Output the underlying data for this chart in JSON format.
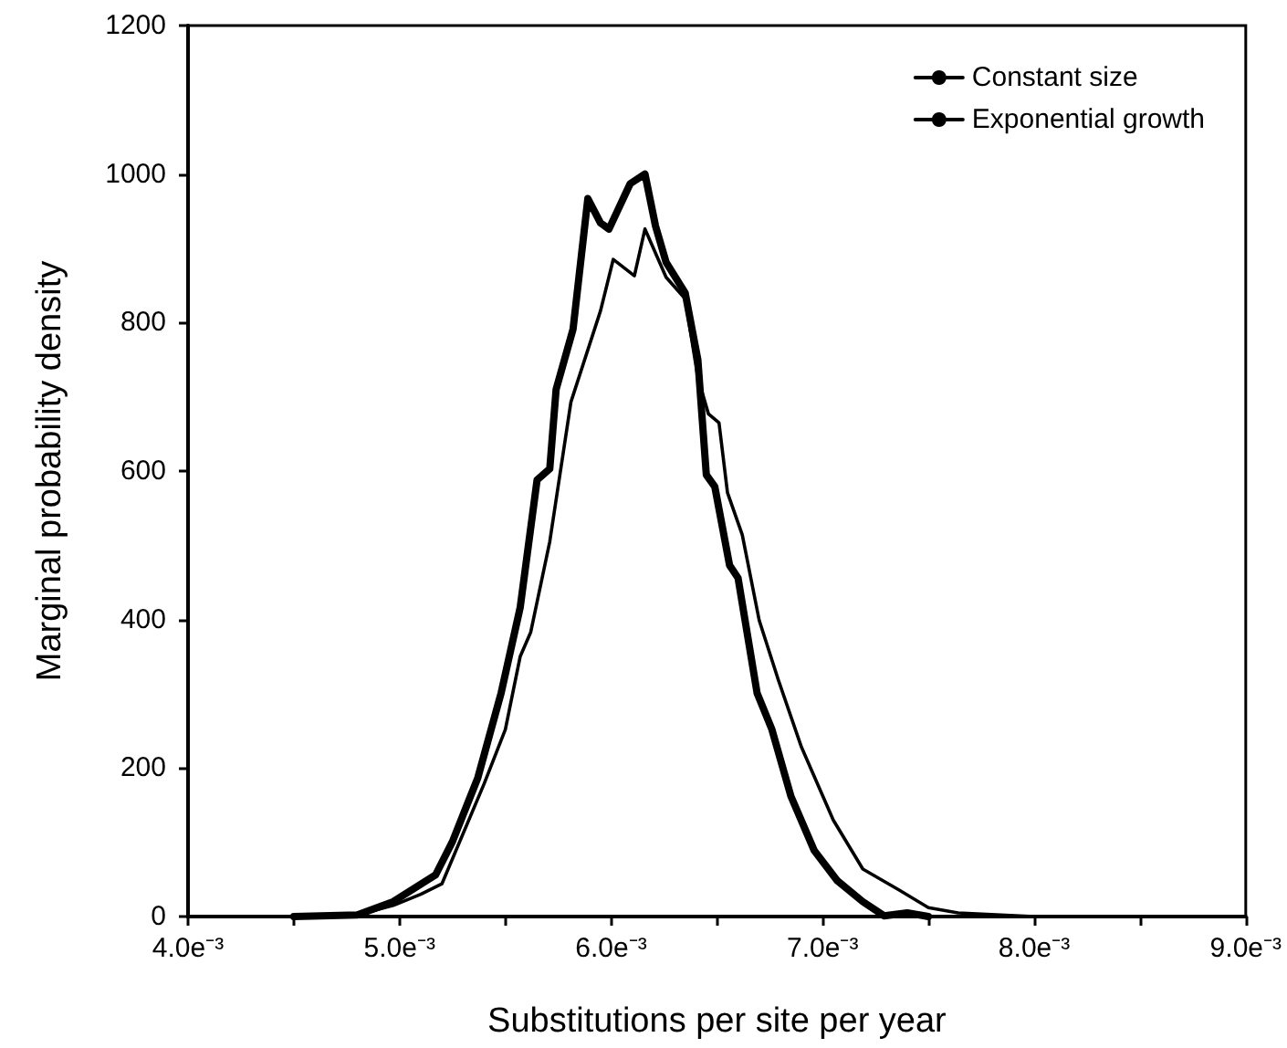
{
  "chart_data": {
    "type": "line",
    "xlabel": "Substitutions per site per year",
    "ylabel": "Marginal probability density",
    "xlim": [
      4.0,
      9.0
    ],
    "xticks": [
      {
        "value": 4.0,
        "label": "4.0e⁻³"
      },
      {
        "value": 4.5,
        "label": null
      },
      {
        "value": 5.0,
        "label": "5.0e⁻³"
      },
      {
        "value": 5.5,
        "label": null
      },
      {
        "value": 6.0,
        "label": "6.0e⁻³"
      },
      {
        "value": 6.5,
        "label": null
      },
      {
        "value": 7.0,
        "label": "7.0e⁻³"
      },
      {
        "value": 7.5,
        "label": null
      },
      {
        "value": 8.0,
        "label": "8.0e⁻³"
      },
      {
        "value": 8.5,
        "label": null
      },
      {
        "value": 9.0,
        "label": "9.0e⁻³"
      }
    ],
    "ylim": [
      0,
      1200
    ],
    "yticks": [
      0,
      200,
      400,
      600,
      800,
      1000,
      1200
    ],
    "grid": false,
    "legend": "top right",
    "marker": "none",
    "line_style": "solid",
    "series": [
      {
        "name": "Constant size",
        "color": "#000000",
        "x": [
          4.6,
          4.8,
          4.97,
          5.1,
          5.2,
          5.4,
          5.5,
          5.57,
          5.62,
          5.71,
          5.81,
          5.95,
          6.01,
          6.11,
          6.16,
          6.26,
          6.35,
          6.41,
          6.46,
          6.51,
          6.55,
          6.62,
          6.7,
          6.79,
          6.9,
          7.05,
          7.19,
          7.36,
          7.5,
          7.64,
          8.0
        ],
        "values": [
          0,
          2,
          15,
          30,
          44,
          179,
          252,
          350,
          383,
          505,
          693,
          816,
          885,
          863,
          926,
          861,
          832,
          726,
          677,
          665,
          571,
          514,
          399,
          319,
          228,
          130,
          64,
          36,
          12,
          5,
          0
        ]
      },
      {
        "name": "Exponential growth",
        "color": "#000000",
        "x": [
          4.5,
          4.8,
          4.97,
          5.17,
          5.25,
          5.37,
          5.48,
          5.57,
          5.65,
          5.71,
          5.74,
          5.82,
          5.89,
          5.95,
          5.99,
          6.09,
          6.16,
          6.21,
          6.26,
          6.35,
          6.41,
          6.45,
          6.49,
          6.56,
          6.6,
          6.69,
          6.76,
          6.85,
          6.96,
          7.07,
          7.19,
          7.29,
          7.4,
          7.5
        ],
        "values": [
          0,
          2,
          20,
          56,
          101,
          187,
          301,
          416,
          588,
          603,
          710,
          791,
          967,
          934,
          926,
          987,
          1000,
          930,
          881,
          840,
          750,
          595,
          579,
          473,
          456,
          301,
          252,
          162,
          89,
          48,
          20,
          1,
          5,
          0
        ]
      }
    ]
  }
}
